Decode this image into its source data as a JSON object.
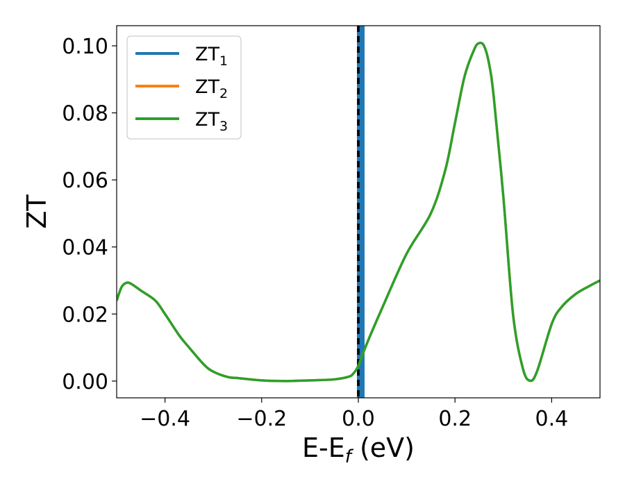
{
  "chart_data": {
    "type": "line",
    "title": "",
    "xlabel": {
      "base": "E-E",
      "subscript": "f",
      "suffix": " (eV)"
    },
    "ylabel": "ZT",
    "xlim": [
      -0.5,
      0.5
    ],
    "ylim": [
      -0.005,
      0.106
    ],
    "xticks": [
      -0.4,
      -0.2,
      0.0,
      0.2,
      0.4
    ],
    "xtick_labels": [
      "−0.4",
      "−0.2",
      "0.0",
      "0.2",
      "0.4"
    ],
    "yticks": [
      0.0,
      0.02,
      0.04,
      0.06,
      0.08,
      0.1
    ],
    "ytick_labels": [
      "0.00",
      "0.02",
      "0.04",
      "0.06",
      "0.08",
      "0.10"
    ],
    "legend_position": "top-left",
    "series": [
      {
        "name": "ZT",
        "subscript": "1",
        "color": "#1f77b4",
        "kind": "vertical-line",
        "x": 0.005
      },
      {
        "name": "ZT",
        "subscript": "2",
        "color": "#ff7f0e",
        "kind": "curve-hidden-under-ZT3"
      },
      {
        "name": "ZT",
        "subscript": "3",
        "color": "#2ca02c",
        "kind": "curve"
      }
    ],
    "curve": {
      "x": [
        -0.5,
        -0.49,
        -0.48,
        -0.47,
        -0.45,
        -0.42,
        -0.4,
        -0.37,
        -0.35,
        -0.32,
        -0.3,
        -0.27,
        -0.25,
        -0.2,
        -0.15,
        -0.1,
        -0.05,
        -0.02,
        -0.01,
        0.0,
        0.005,
        0.02,
        0.05,
        0.1,
        0.15,
        0.18,
        0.2,
        0.22,
        0.24,
        0.25,
        0.26,
        0.27,
        0.28,
        0.3,
        0.32,
        0.34,
        0.355,
        0.37,
        0.4,
        0.42,
        0.45,
        0.48,
        0.5
      ],
      "y": [
        0.024,
        0.028,
        0.0293,
        0.029,
        0.027,
        0.024,
        0.02,
        0.0135,
        0.01,
        0.005,
        0.0028,
        0.0012,
        0.0009,
        0.0002,
        0.0,
        0.0002,
        0.0005,
        0.0013,
        0.0023,
        0.0045,
        0.0065,
        0.012,
        0.022,
        0.038,
        0.05,
        0.063,
        0.077,
        0.091,
        0.099,
        0.1008,
        0.1,
        0.095,
        0.085,
        0.055,
        0.02,
        0.004,
        0.0001,
        0.003,
        0.017,
        0.022,
        0.026,
        0.0285,
        0.03
      ]
    },
    "reference_line": {
      "x": 0.0,
      "style": "dashed",
      "color": "#000000"
    }
  }
}
